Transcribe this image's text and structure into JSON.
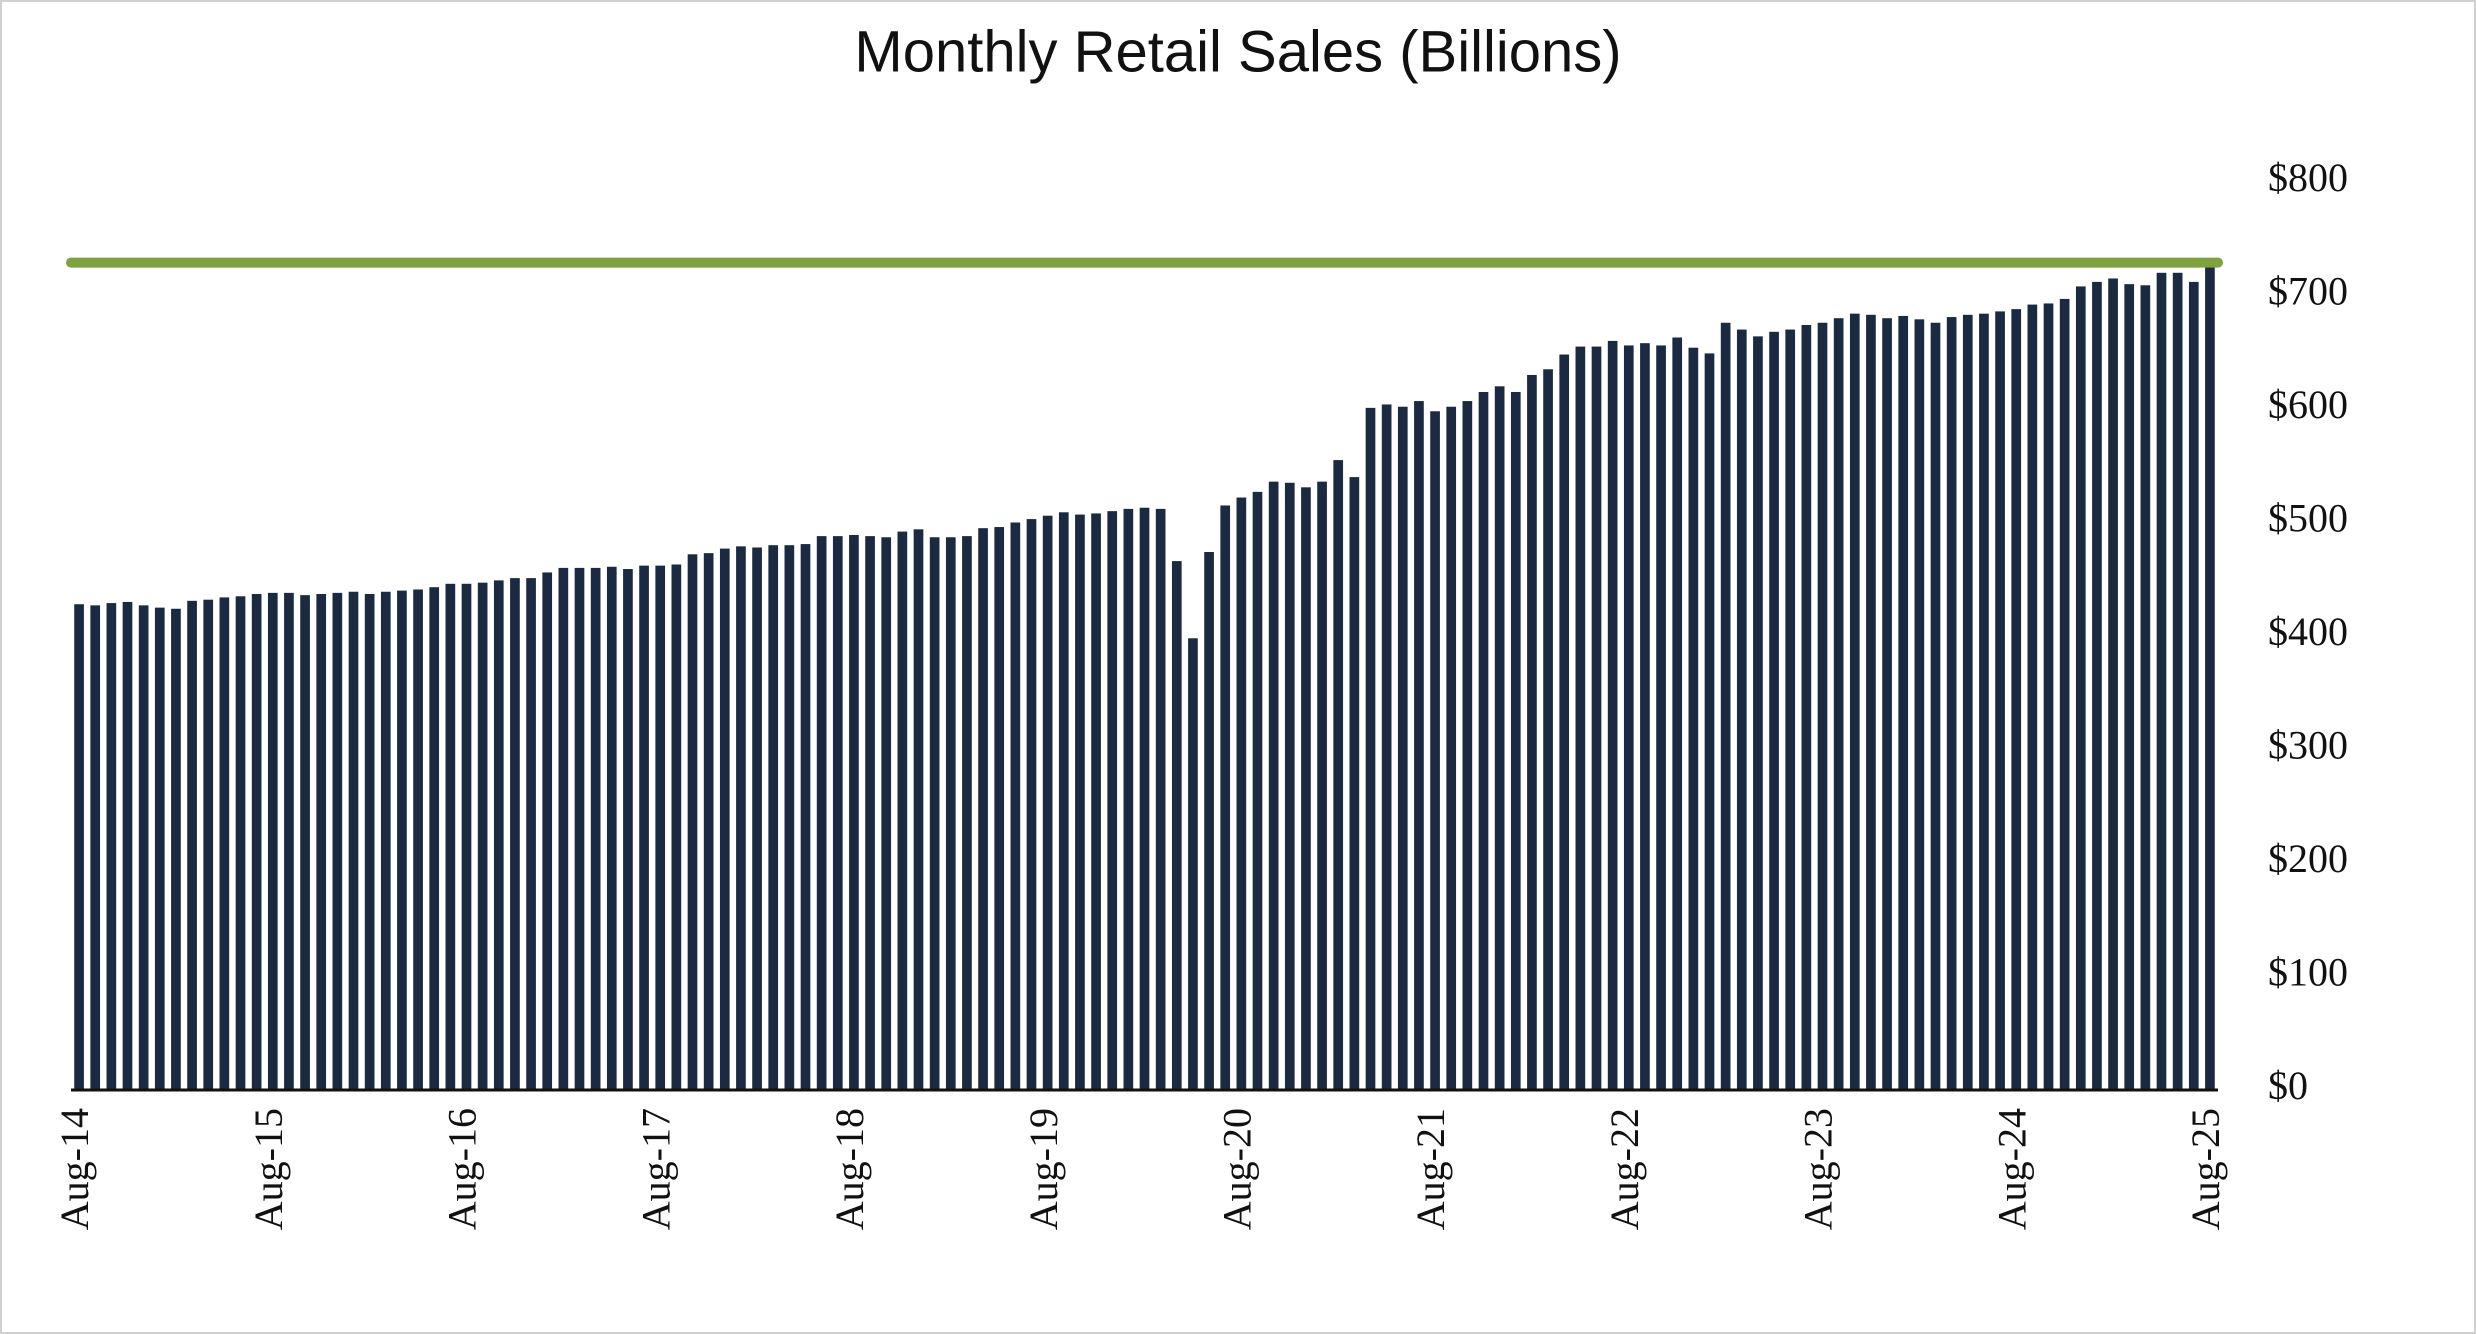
{
  "chart_data": {
    "type": "bar",
    "title": "Monthly Retail Sales (Billions)",
    "categories": [
      "Aug-14",
      null,
      null,
      null,
      null,
      null,
      null,
      null,
      null,
      null,
      null,
      null,
      "Aug-15",
      null,
      null,
      null,
      null,
      null,
      null,
      null,
      null,
      null,
      null,
      null,
      "Aug-16",
      null,
      null,
      null,
      null,
      null,
      null,
      null,
      null,
      null,
      null,
      null,
      "Aug-17",
      null,
      null,
      null,
      null,
      null,
      null,
      null,
      null,
      null,
      null,
      null,
      "Aug-18",
      null,
      null,
      null,
      null,
      null,
      null,
      null,
      null,
      null,
      null,
      null,
      "Aug-19",
      null,
      null,
      null,
      null,
      null,
      null,
      null,
      null,
      null,
      null,
      null,
      "Aug-20",
      null,
      null,
      null,
      null,
      null,
      null,
      null,
      null,
      null,
      null,
      null,
      "Aug-21",
      null,
      null,
      null,
      null,
      null,
      null,
      null,
      null,
      null,
      null,
      null,
      "Aug-22",
      null,
      null,
      null,
      null,
      null,
      null,
      null,
      null,
      null,
      null,
      null,
      "Aug-23",
      null,
      null,
      null,
      null,
      null,
      null,
      null,
      null,
      null,
      null,
      null,
      "Aug-24",
      null,
      null,
      null,
      null,
      null,
      null,
      null,
      null,
      null,
      null,
      null,
      "Aug-25"
    ],
    "values": [
      428,
      427,
      429,
      430,
      427,
      425,
      424,
      431,
      432,
      434,
      435,
      437,
      438,
      438,
      436,
      437,
      438,
      439,
      437,
      439,
      440,
      441,
      443,
      446,
      446,
      447,
      449,
      451,
      451,
      456,
      460,
      460,
      460,
      461,
      459,
      462,
      462,
      463,
      472,
      473,
      477,
      479,
      478,
      480,
      480,
      481,
      488,
      488,
      489,
      488,
      487,
      492,
      494,
      487,
      487,
      488,
      495,
      496,
      500,
      503,
      506,
      509,
      507,
      508,
      510,
      512,
      513,
      512,
      466,
      398,
      474,
      515,
      522,
      527,
      536,
      535,
      531,
      536,
      555,
      540,
      601,
      604,
      602,
      607,
      598,
      602,
      607,
      615,
      620,
      615,
      630,
      635,
      648,
      655,
      655,
      660,
      656,
      658,
      656,
      663,
      654,
      649,
      676,
      670,
      664,
      668,
      670,
      674,
      676,
      680,
      684,
      683,
      680,
      682,
      679,
      676,
      681,
      683,
      684,
      686,
      688,
      692,
      693,
      697,
      708,
      712,
      715,
      710,
      709,
      720,
      720,
      712,
      729
    ],
    "color": "#1b2a41",
    "reference_line": {
      "value": 729,
      "color": "#7ea23f"
    },
    "ylim": [
      0,
      800
    ],
    "yticks": [
      {
        "value": 0,
        "label": "$0"
      },
      {
        "value": 100,
        "label": "$100"
      },
      {
        "value": 200,
        "label": "$200"
      },
      {
        "value": 300,
        "label": "$300"
      },
      {
        "value": 400,
        "label": "$400"
      },
      {
        "value": 500,
        "label": "$500"
      },
      {
        "value": 600,
        "label": "$600"
      },
      {
        "value": 700,
        "label": "$700"
      },
      {
        "value": 800,
        "label": "$800"
      }
    ],
    "y_axis_side": "right"
  }
}
